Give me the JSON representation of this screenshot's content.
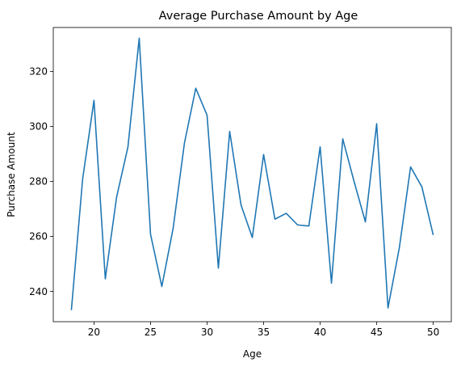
{
  "chart_data": {
    "type": "line",
    "title": "Average Purchase Amount by Age",
    "xlabel": "Age",
    "ylabel": "Purchase Amount",
    "xlim": [
      16.4,
      51.6
    ],
    "ylim": [
      229,
      336
    ],
    "xticks": [
      20,
      25,
      30,
      35,
      40,
      45,
      50
    ],
    "yticks": [
      240,
      260,
      280,
      300,
      320
    ],
    "grid": false,
    "legend": "none",
    "series": [
      {
        "color": "#1f77b4",
        "x": [
          18,
          19,
          20,
          21,
          22,
          23,
          24,
          25,
          26,
          27,
          28,
          29,
          30,
          31,
          32,
          33,
          34,
          35,
          36,
          37,
          38,
          39,
          40,
          41,
          42,
          43,
          44,
          45,
          46,
          47,
          48,
          49,
          50
        ],
        "values": [
          233.2,
          281.0,
          309.5,
          244.6,
          274.3,
          292.5,
          332.1,
          260.8,
          241.8,
          263.0,
          294.0,
          313.9,
          304.1,
          248.5,
          298.2,
          271.5,
          259.6,
          289.8,
          266.3,
          268.4,
          264.2,
          263.8,
          292.6,
          243.0,
          295.5,
          280.0,
          265.3,
          301.0,
          234.0,
          255.8,
          285.3,
          278.0,
          260.5
        ]
      }
    ]
  }
}
